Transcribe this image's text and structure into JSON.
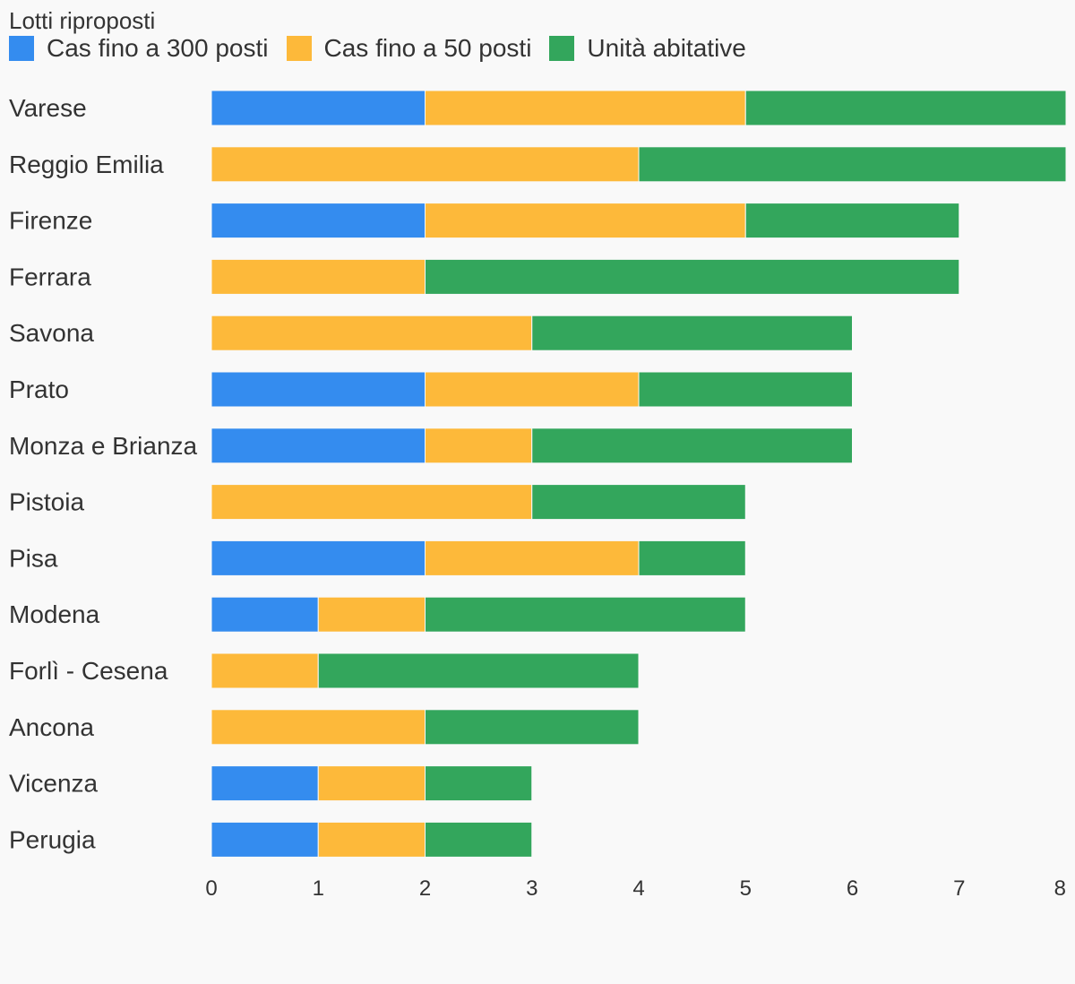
{
  "colors": {
    "background": "#f9f9f9",
    "text": "#333333"
  },
  "chart_data": {
    "type": "bar",
    "orientation": "horizontal",
    "stacked": true,
    "title": "Lotti riproposti",
    "legend_position": "top-left",
    "grid": false,
    "xlim": [
      0,
      8
    ],
    "xticks": [
      0,
      1,
      2,
      3,
      4,
      5,
      6,
      7,
      8
    ],
    "categories": [
      "Varese",
      "Reggio Emilia",
      "Firenze",
      "Ferrara",
      "Savona",
      "Prato",
      "Monza e Brianza",
      "Pistoia",
      "Pisa",
      "Modena",
      "Forlì - Cesena",
      "Ancona",
      "Vicenza",
      "Perugia"
    ],
    "series": [
      {
        "name": "Cas fino a 300 posti",
        "color": "#348cef",
        "values": [
          2,
          0,
          2,
          0,
          0,
          2,
          2,
          0,
          2,
          1,
          0,
          0,
          1,
          1
        ]
      },
      {
        "name": "Cas fino a 50 posti",
        "color": "#fdb93a",
        "values": [
          3,
          4,
          3,
          2,
          3,
          2,
          1,
          3,
          2,
          1,
          1,
          2,
          1,
          1
        ]
      },
      {
        "name": "Unità abitative",
        "color": "#33a65c",
        "values": [
          3,
          4,
          2,
          5,
          3,
          2,
          3,
          2,
          1,
          3,
          3,
          2,
          1,
          1
        ]
      }
    ]
  }
}
